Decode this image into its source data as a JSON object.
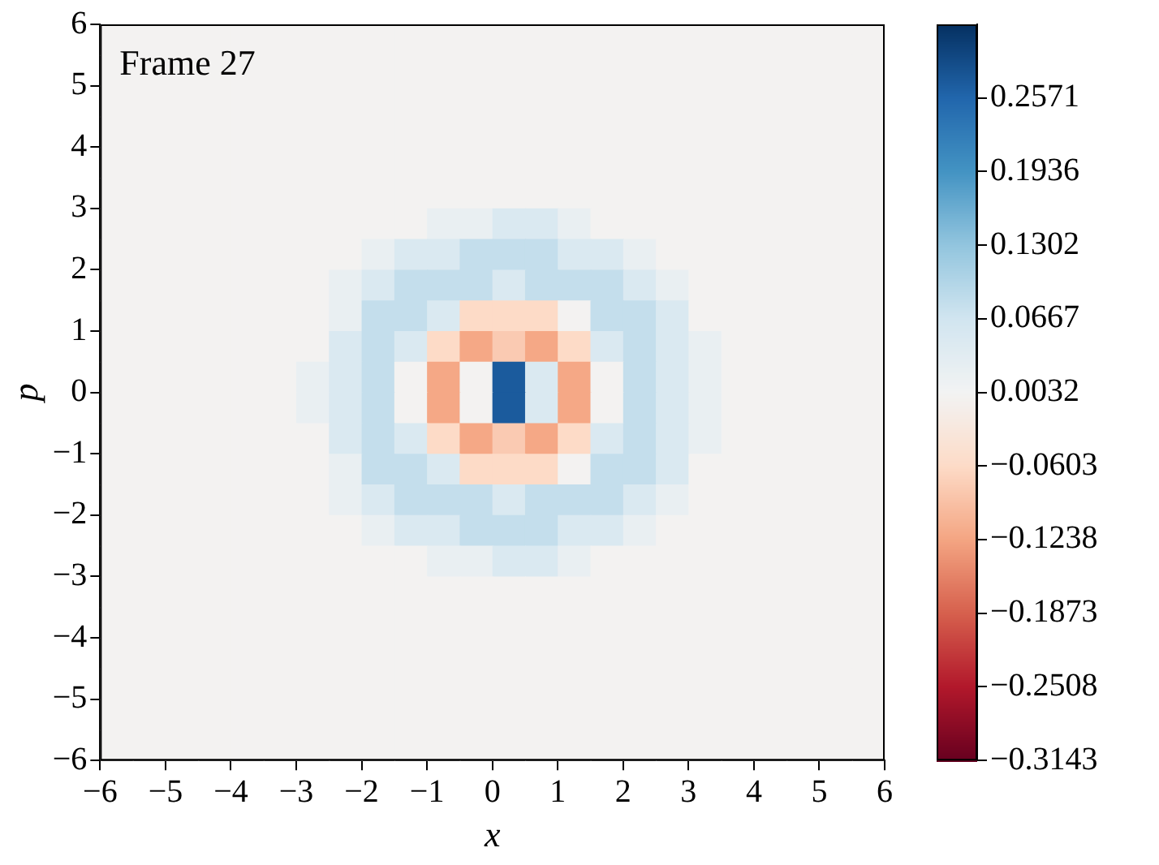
{
  "chart_data": {
    "type": "heatmap",
    "xlabel": "x",
    "ylabel": "p",
    "annotations": [
      "Frame 27"
    ],
    "xlim": [
      -6,
      6
    ],
    "ylim": [
      -6,
      6
    ],
    "xticks": [
      {
        "value": -6,
        "label": "−6"
      },
      {
        "value": -5,
        "label": "−5"
      },
      {
        "value": -4,
        "label": "−4"
      },
      {
        "value": -3,
        "label": "−3"
      },
      {
        "value": -2,
        "label": "−2"
      },
      {
        "value": -1,
        "label": "−1"
      },
      0,
      1,
      2,
      3,
      4,
      5,
      6
    ],
    "yticks": [
      {
        "value": -6,
        "label": "−6"
      },
      {
        "value": -5,
        "label": "−5"
      },
      {
        "value": -4,
        "label": "−4"
      },
      {
        "value": -3,
        "label": "−3"
      },
      {
        "value": -2,
        "label": "−2"
      },
      {
        "value": -1,
        "label": "−1"
      },
      0,
      1,
      2,
      3,
      4,
      5,
      6
    ],
    "clim": [
      -0.3143,
      0.3206
    ],
    "cticks": [
      {
        "value": -0.3143,
        "label": "−0.3143"
      },
      {
        "value": -0.2508,
        "label": "−0.2508"
      },
      {
        "value": -0.1873,
        "label": "−0.1873"
      },
      {
        "value": -0.1238,
        "label": "−0.1238"
      },
      {
        "value": -0.0603,
        "label": "−0.0603"
      },
      0.0032,
      0.0667,
      0.1302,
      0.1936,
      0.2571
    ],
    "grid": false,
    "cells": [
      [
        0,
        0,
        0,
        0,
        0,
        0,
        0,
        0,
        0,
        0,
        0,
        0,
        0,
        0,
        0,
        0,
        0,
        0,
        0,
        0,
        0,
        0,
        0,
        0
      ],
      [
        0,
        0,
        0,
        0,
        0,
        0,
        0,
        0,
        0,
        0,
        0,
        0,
        0,
        0,
        0,
        0,
        0,
        0,
        0,
        0,
        0,
        0,
        0,
        0
      ],
      [
        0,
        0,
        0,
        0,
        0,
        0,
        0,
        0,
        0,
        0,
        0,
        0,
        0,
        0,
        0,
        0,
        0,
        0,
        0,
        0,
        0,
        0,
        0,
        0
      ],
      [
        0,
        0,
        0,
        0,
        0,
        0,
        0,
        0,
        0,
        0,
        0,
        0,
        0,
        0,
        0,
        0,
        0,
        0,
        0,
        0,
        0,
        0,
        0,
        0
      ],
      [
        0,
        0,
        0,
        0,
        0,
        0,
        0,
        0,
        0,
        0,
        0,
        0,
        0,
        0,
        0,
        0,
        0,
        0,
        0,
        0,
        0,
        0,
        0,
        0
      ],
      [
        0,
        0,
        0,
        0,
        0,
        0,
        0,
        0,
        0,
        0,
        0,
        0,
        0,
        0,
        0,
        0,
        0,
        0,
        0,
        0,
        0,
        0,
        0,
        0
      ],
      [
        0,
        0,
        0,
        0,
        0,
        0,
        0,
        0,
        0,
        0,
        0.02,
        0.02,
        0.05,
        0.05,
        0.02,
        0,
        0,
        0,
        0,
        0,
        0,
        0,
        0,
        0
      ],
      [
        0,
        0,
        0,
        0,
        0,
        0,
        0,
        0,
        0.02,
        0.05,
        0.05,
        0.08,
        0.08,
        0.08,
        0.05,
        0.05,
        0.02,
        0,
        0,
        0,
        0,
        0,
        0,
        0
      ],
      [
        0,
        0,
        0,
        0,
        0,
        0,
        0,
        0.02,
        0.05,
        0.08,
        0.08,
        0.08,
        0.05,
        0.08,
        0.08,
        0.08,
        0.05,
        0.02,
        0,
        0,
        0,
        0,
        0,
        0
      ],
      [
        0,
        0,
        0,
        0,
        0,
        0,
        0,
        0.02,
        0.08,
        0.08,
        0.05,
        -0.06,
        -0.06,
        -0.06,
        0,
        0.08,
        0.08,
        0.05,
        0,
        0,
        0,
        0,
        0,
        0
      ],
      [
        0,
        0,
        0,
        0,
        0,
        0,
        0,
        0.05,
        0.08,
        0.05,
        -0.06,
        -0.12,
        -0.08,
        -0.12,
        -0.06,
        0.05,
        0.08,
        0.05,
        0.02,
        0,
        0,
        0,
        0,
        0
      ],
      [
        0,
        0,
        0,
        0,
        0,
        0,
        0.02,
        0.05,
        0.08,
        0,
        -0.12,
        0,
        0.27,
        0.05,
        -0.12,
        0,
        0.08,
        0.05,
        0.02,
        0,
        0,
        0,
        0,
        0
      ],
      [
        0,
        0,
        0,
        0,
        0,
        0,
        0.02,
        0.05,
        0.08,
        0,
        -0.12,
        0,
        0.27,
        0.05,
        -0.12,
        0,
        0.08,
        0.05,
        0.02,
        0,
        0,
        0,
        0,
        0
      ],
      [
        0,
        0,
        0,
        0,
        0,
        0,
        0,
        0.05,
        0.08,
        0.05,
        -0.06,
        -0.12,
        -0.08,
        -0.12,
        -0.06,
        0.05,
        0.08,
        0.05,
        0.02,
        0,
        0,
        0,
        0,
        0
      ],
      [
        0,
        0,
        0,
        0,
        0,
        0,
        0,
        0.02,
        0.08,
        0.08,
        0.05,
        -0.06,
        -0.06,
        -0.06,
        0,
        0.08,
        0.08,
        0.05,
        0,
        0,
        0,
        0,
        0,
        0
      ],
      [
        0,
        0,
        0,
        0,
        0,
        0,
        0,
        0.02,
        0.05,
        0.08,
        0.08,
        0.08,
        0.05,
        0.08,
        0.08,
        0.08,
        0.05,
        0.02,
        0,
        0,
        0,
        0,
        0,
        0
      ],
      [
        0,
        0,
        0,
        0,
        0,
        0,
        0,
        0,
        0.02,
        0.05,
        0.05,
        0.08,
        0.08,
        0.08,
        0.05,
        0.05,
        0.02,
        0,
        0,
        0,
        0,
        0,
        0,
        0
      ],
      [
        0,
        0,
        0,
        0,
        0,
        0,
        0,
        0,
        0,
        0,
        0.02,
        0.02,
        0.05,
        0.05,
        0.02,
        0,
        0,
        0,
        0,
        0,
        0,
        0,
        0,
        0
      ],
      [
        0,
        0,
        0,
        0,
        0,
        0,
        0,
        0,
        0,
        0,
        0,
        0,
        0,
        0,
        0,
        0,
        0,
        0,
        0,
        0,
        0,
        0,
        0,
        0
      ],
      [
        0,
        0,
        0,
        0,
        0,
        0,
        0,
        0,
        0,
        0,
        0,
        0,
        0,
        0,
        0,
        0,
        0,
        0,
        0,
        0,
        0,
        0,
        0,
        0
      ],
      [
        0,
        0,
        0,
        0,
        0,
        0,
        0,
        0,
        0,
        0,
        0,
        0,
        0,
        0,
        0,
        0,
        0,
        0,
        0,
        0,
        0,
        0,
        0,
        0
      ],
      [
        0,
        0,
        0,
        0,
        0,
        0,
        0,
        0,
        0,
        0,
        0,
        0,
        0,
        0,
        0,
        0,
        0,
        0,
        0,
        0,
        0,
        0,
        0,
        0
      ],
      [
        0,
        0,
        0,
        0,
        0,
        0,
        0,
        0,
        0,
        0,
        0,
        0,
        0,
        0,
        0,
        0,
        0,
        0,
        0,
        0,
        0,
        0,
        0,
        0
      ],
      [
        0,
        0,
        0,
        0,
        0,
        0,
        0,
        0,
        0,
        0,
        0,
        0,
        0,
        0,
        0,
        0,
        0,
        0,
        0,
        0,
        0,
        0,
        0,
        0
      ]
    ]
  }
}
